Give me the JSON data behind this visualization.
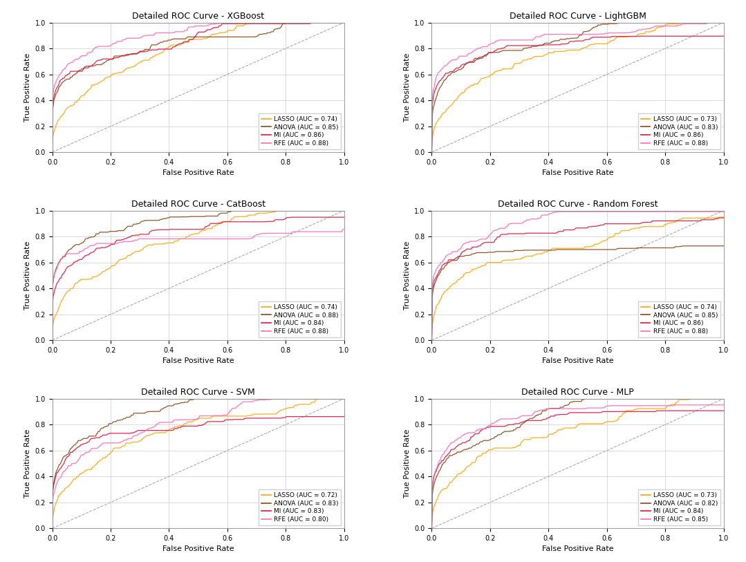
{
  "subplots": [
    {
      "title": "Detailed ROC Curve - XGBoost",
      "curves": [
        {
          "label": "LASSO (AUC = 0.74)",
          "color": "#FFA500",
          "auc": 0.74,
          "seed": 1
        },
        {
          "label": "ANOVA (AUC = 0.85)",
          "color": "#8B4513",
          "auc": 0.85,
          "seed": 2
        },
        {
          "label": "MI (AUC = 0.86)",
          "color": "#DC143C",
          "auc": 0.86,
          "seed": 3
        },
        {
          "label": "RFE (AUC = 0.88)",
          "color": "#FF69B4",
          "auc": 0.88,
          "seed": 4
        }
      ]
    },
    {
      "title": "Detailed ROC Curve - LightGBM",
      "curves": [
        {
          "label": "LASSO (AUC = 0.73)",
          "color": "#FFA500",
          "auc": 0.73,
          "seed": 5
        },
        {
          "label": "ANOVA (AUC = 0.83)",
          "color": "#8B4513",
          "auc": 0.83,
          "seed": 6
        },
        {
          "label": "MI (AUC = 0.86)",
          "color": "#DC143C",
          "auc": 0.86,
          "seed": 7
        },
        {
          "label": "RFE (AUC = 0.88)",
          "color": "#FF69B4",
          "auc": 0.88,
          "seed": 8
        }
      ]
    },
    {
      "title": "Detailed ROC Curve - CatBoost",
      "curves": [
        {
          "label": "LASSO (AUC = 0.74)",
          "color": "#FFA500",
          "auc": 0.74,
          "seed": 9
        },
        {
          "label": "ANOVA (AUC = 0.88)",
          "color": "#8B4513",
          "auc": 0.88,
          "seed": 10
        },
        {
          "label": "MI (AUC = 0.84)",
          "color": "#DC143C",
          "auc": 0.84,
          "seed": 11
        },
        {
          "label": "RFE (AUC = 0.88)",
          "color": "#FF69B4",
          "auc": 0.88,
          "seed": 12
        }
      ]
    },
    {
      "title": "Detailed ROC Curve - Random Forest",
      "curves": [
        {
          "label": "LASSO (AUC = 0.74)",
          "color": "#FFA500",
          "auc": 0.74,
          "seed": 13
        },
        {
          "label": "ANOVA (AUC = 0.85)",
          "color": "#8B4513",
          "auc": 0.85,
          "seed": 14
        },
        {
          "label": "MI (AUC = 0.86)",
          "color": "#DC143C",
          "auc": 0.86,
          "seed": 15
        },
        {
          "label": "RFE (AUC = 0.88)",
          "color": "#FF69B4",
          "auc": 0.88,
          "seed": 16
        }
      ]
    },
    {
      "title": "Detailed ROC Curve - SVM",
      "curves": [
        {
          "label": "LASSO (AUC = 0.72)",
          "color": "#FFA500",
          "auc": 0.72,
          "seed": 17
        },
        {
          "label": "ANOVA (AUC = 0.83)",
          "color": "#8B4513",
          "auc": 0.83,
          "seed": 18
        },
        {
          "label": "MI (AUC = 0.83)",
          "color": "#DC143C",
          "auc": 0.83,
          "seed": 19
        },
        {
          "label": "RFE (AUC = 0.80)",
          "color": "#FF69B4",
          "auc": 0.8,
          "seed": 20
        }
      ]
    },
    {
      "title": "Detailed ROC Curve - MLP",
      "curves": [
        {
          "label": "LASSO (AUC = 0.73)",
          "color": "#FFA500",
          "auc": 0.73,
          "seed": 21
        },
        {
          "label": "ANOVA (AUC = 0.82)",
          "color": "#8B4513",
          "auc": 0.82,
          "seed": 22
        },
        {
          "label": "MI (AUC = 0.84)",
          "color": "#DC143C",
          "auc": 0.84,
          "seed": 23
        },
        {
          "label": "RFE (AUC = 0.85)",
          "color": "#FF69B4",
          "auc": 0.85,
          "seed": 24
        }
      ]
    }
  ],
  "xlabel": "False Positive Rate",
  "ylabel": "True Positive Rate",
  "xlim": [
    0.0,
    1.0
  ],
  "ylim": [
    0.0,
    1.0
  ],
  "grid_color": "#cccccc",
  "diagonal_color": "#aaaaaa",
  "background_color": "#ffffff",
  "title_fontsize": 9,
  "label_fontsize": 8,
  "tick_fontsize": 7,
  "legend_fontsize": 6.5,
  "n_points": 500
}
